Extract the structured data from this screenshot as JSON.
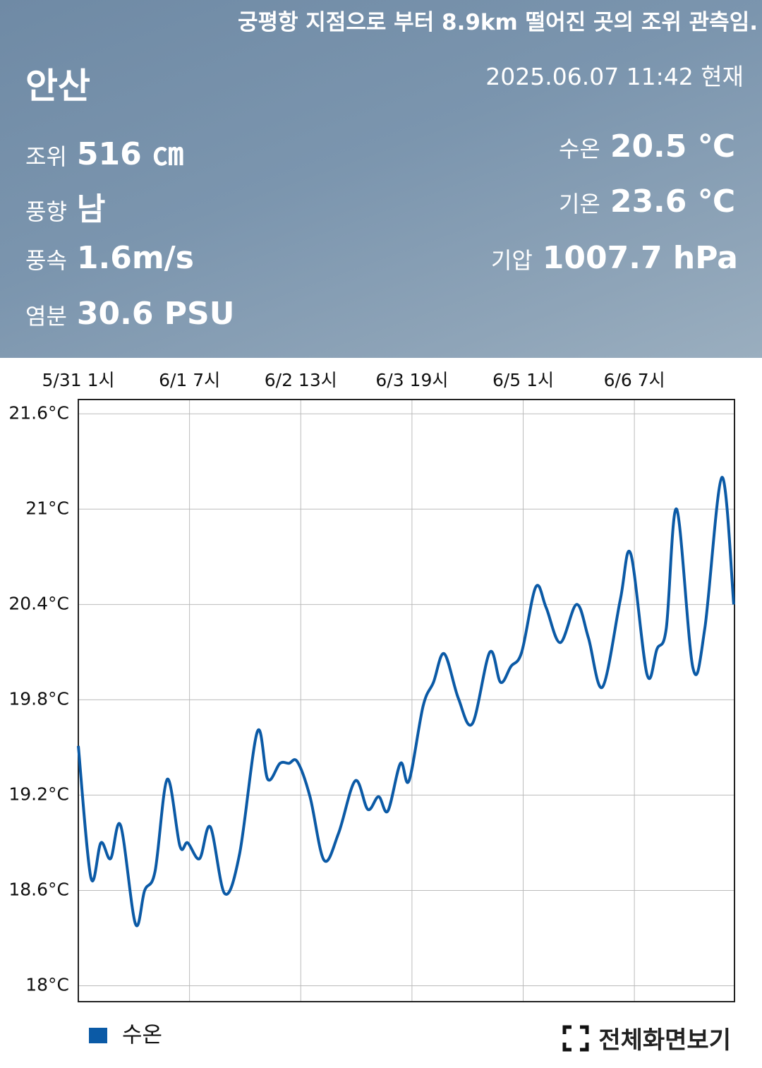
{
  "header": {
    "notice": "궁평항 지점으로 부터 8.9km 떨어진 곳의 조위 관측임.",
    "location": "안산",
    "timestamp": "2025.06.07 11:42 현재",
    "left": [
      {
        "label": "조위",
        "value": "516 ㎝"
      },
      {
        "label": "풍향",
        "value": "남"
      },
      {
        "label": "풍속",
        "value": "1.6m/s"
      },
      {
        "label": "염분",
        "value": "30.6 PSU"
      }
    ],
    "right": [
      {
        "label": "수온",
        "value": "20.5 ℃"
      },
      {
        "label": "기온",
        "value": "23.6 ℃"
      },
      {
        "label": "기압",
        "value": "1007.7 hPa"
      }
    ]
  },
  "chart_data": {
    "type": "line",
    "xlim": [
      0,
      177
    ],
    "xticks": [
      {
        "value": 0,
        "label": "5/31 1시"
      },
      {
        "value": 30,
        "label": "6/1 7시"
      },
      {
        "value": 60,
        "label": "6/2 13시"
      },
      {
        "value": 90,
        "label": "6/3 19시"
      },
      {
        "value": 120,
        "label": "6/5 1시"
      },
      {
        "value": 150,
        "label": "6/6 7시"
      }
    ],
    "ylim": [
      17.9,
      21.69
    ],
    "yticks": [
      {
        "value": 18,
        "label": "18°C"
      },
      {
        "value": 18.6,
        "label": "18.6°C"
      },
      {
        "value": 19.2,
        "label": "19.2°C"
      },
      {
        "value": 19.8,
        "label": "19.8°C"
      },
      {
        "value": 20.4,
        "label": "20.4°C"
      },
      {
        "value": 21,
        "label": "21°C"
      },
      {
        "value": 21.6,
        "label": "21.6°C"
      }
    ],
    "grid": true,
    "series": [
      {
        "name": "수온",
        "color": "#0b5aa6",
        "x": [
          0,
          3.4,
          6.1,
          8.7,
          11.4,
          15.4,
          17.9,
          20.7,
          24,
          27.4,
          29.5,
          32.7,
          35.6,
          39.5,
          43.5,
          48.3,
          51.1,
          54.4,
          56.8,
          59.1,
          62.5,
          66.3,
          70.2,
          74.7,
          78.1,
          81,
          83.5,
          86.9,
          89.2,
          93,
          95.8,
          98.7,
          102.5,
          106.3,
          111,
          113.9,
          116.7,
          119.6,
          123.4,
          126.2,
          130,
          134.4,
          137.6,
          141.4,
          146.2,
          149,
          153.4,
          156.1,
          158.6,
          161.4,
          165.8,
          169,
          173.6,
          176.8
        ],
        "values": [
          19.51,
          18.68,
          18.9,
          18.8,
          19.01,
          18.39,
          18.6,
          18.72,
          19.3,
          18.88,
          18.9,
          18.8,
          19.0,
          18.58,
          18.83,
          19.6,
          19.3,
          19.4,
          19.4,
          19.41,
          19.19,
          18.79,
          18.96,
          19.29,
          19.11,
          19.19,
          19.1,
          19.4,
          19.29,
          19.76,
          19.91,
          20.09,
          19.81,
          19.65,
          20.1,
          19.91,
          20.01,
          20.1,
          20.51,
          20.38,
          20.16,
          20.4,
          20.19,
          19.88,
          20.43,
          20.72,
          19.96,
          20.12,
          20.25,
          21.0,
          20.0,
          20.25,
          21.2,
          20.4
        ]
      }
    ]
  },
  "footer": {
    "fullscreen": "전체화면보기"
  }
}
